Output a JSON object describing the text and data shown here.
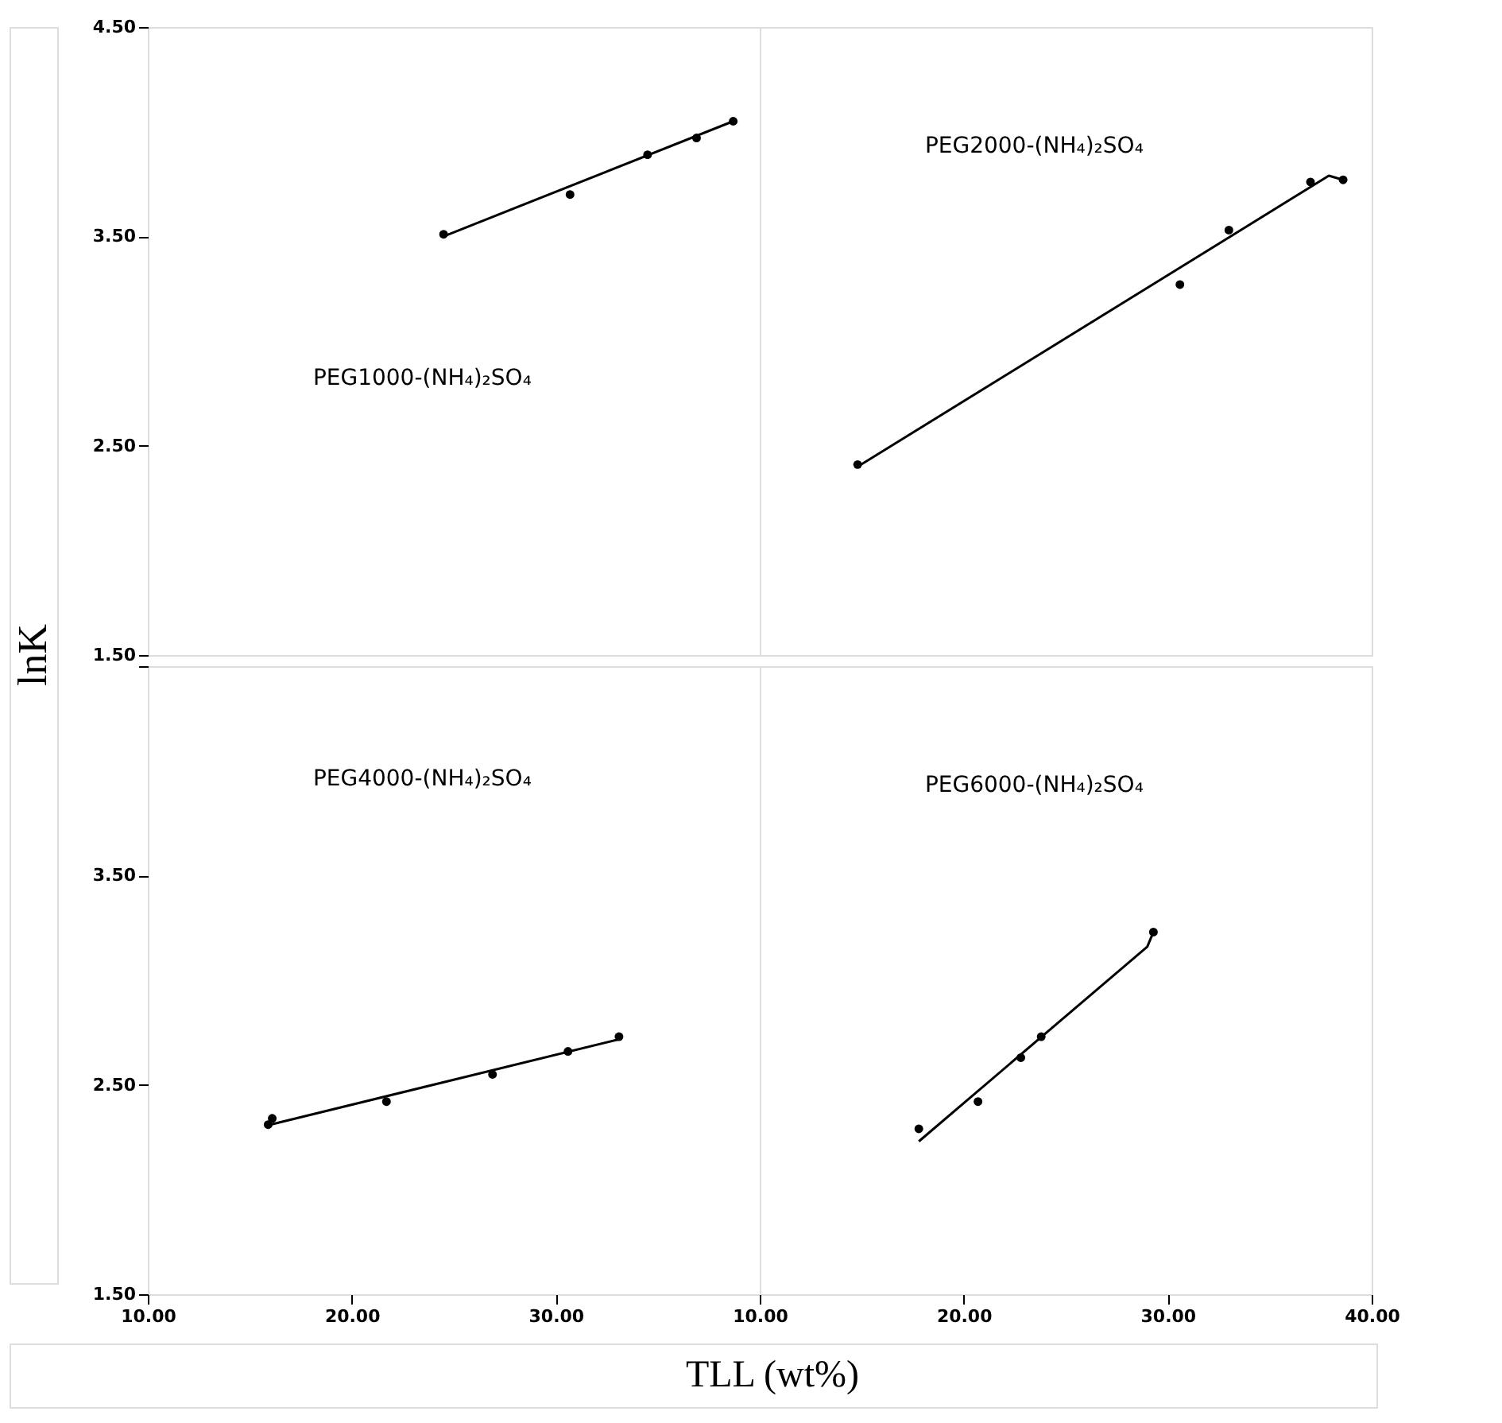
{
  "chart_data": [
    {
      "type": "scatter",
      "title": "PEG1000-(NH₄)₂SO₄",
      "ylabel": "lnK",
      "xlim": [
        10,
        40
      ],
      "ylim": [
        1.5,
        4.5
      ],
      "tick_labels": "y",
      "grid": false,
      "xticks": [
        {
          "value": 10,
          "label": null
        },
        {
          "value": 20,
          "label": null
        },
        {
          "value": 30,
          "label": null
        },
        {
          "value": 40,
          "label": null
        }
      ],
      "yticks": [
        {
          "value": 1.5,
          "label": "1.50"
        },
        {
          "value": 2.5,
          "label": "2.50"
        },
        {
          "value": 3.5,
          "label": "3.50"
        },
        {
          "value": 4.5,
          "label": "4.50"
        }
      ],
      "series": [
        {
          "type": "scatter",
          "marker": "circle",
          "color": "#000000",
          "x": [
            24.5,
            30.7,
            34.5,
            36.9,
            38.7
          ],
          "values": [
            3.51,
            3.7,
            3.89,
            3.97,
            4.05
          ]
        },
        {
          "type": "line",
          "marker": "none",
          "color": "#000000",
          "x": [
            24.5,
            38.7
          ],
          "values": [
            3.5,
            4.05
          ]
        }
      ]
    },
    {
      "type": "scatter",
      "title": "PEG2000-(NH₄)₂SO₄",
      "xlim": [
        10,
        40
      ],
      "ylim": [
        1.5,
        4.5
      ],
      "tick_labels": false,
      "grid": false,
      "xticks": [
        {
          "value": 10,
          "label": null
        },
        {
          "value": 20,
          "label": null
        },
        {
          "value": 30,
          "label": null
        },
        {
          "value": 40,
          "label": null
        }
      ],
      "yticks": [
        {
          "value": 1.5,
          "label": null
        },
        {
          "value": 2.5,
          "label": null
        },
        {
          "value": 3.5,
          "label": null
        },
        {
          "value": 4.5,
          "label": null
        }
      ],
      "series": [
        {
          "type": "scatter",
          "marker": "circle",
          "color": "#000000",
          "x": [
            14.8,
            30.6,
            33.0,
            37.0,
            38.6
          ],
          "values": [
            2.41,
            3.27,
            3.53,
            3.76,
            3.77
          ]
        },
        {
          "type": "line",
          "marker": "none",
          "color": "#000000",
          "x": [
            14.8,
            37.9,
            38.6
          ],
          "values": [
            2.4,
            3.79,
            3.77
          ]
        }
      ]
    },
    {
      "type": "scatter",
      "title": "PEG4000-(NH₄)₂SO₄",
      "xlabel": "TLL (wt%)",
      "xlim": [
        10,
        40
      ],
      "ylim": [
        1.5,
        4.5
      ],
      "grid": false,
      "xticks": [
        {
          "value": 10,
          "label": "10.00"
        },
        {
          "value": 20,
          "label": "20.00"
        },
        {
          "value": 30,
          "label": "30.00"
        },
        {
          "value": 40,
          "label": null
        }
      ],
      "yticks": [
        {
          "value": 1.5,
          "label": "1.50"
        },
        {
          "value": 2.5,
          "label": "2.50"
        },
        {
          "value": 3.5,
          "label": "3.50"
        },
        {
          "value": 4.5,
          "label": null
        }
      ],
      "series": [
        {
          "type": "scatter",
          "marker": "circle",
          "color": "#000000",
          "x": [
            15.9,
            16.1,
            21.7,
            26.9,
            30.6,
            33.1
          ],
          "values": [
            2.31,
            2.34,
            2.42,
            2.55,
            2.66,
            2.73
          ]
        },
        {
          "type": "line",
          "marker": "none",
          "color": "#000000",
          "x": [
            16.0,
            33.2
          ],
          "values": [
            2.31,
            2.72
          ]
        }
      ]
    },
    {
      "type": "scatter",
      "title": "PEG6000-(NH₄)₂SO₄",
      "xlim": [
        10,
        40
      ],
      "ylim": [
        1.5,
        4.5
      ],
      "tick_labels": "x",
      "grid": false,
      "xticks": [
        {
          "value": 10,
          "label": "10.00"
        },
        {
          "value": 20,
          "label": "20.00"
        },
        {
          "value": 30,
          "label": "30.00"
        },
        {
          "value": 40,
          "label": "40.00"
        }
      ],
      "yticks": [
        {
          "value": 1.5,
          "label": null
        },
        {
          "value": 2.5,
          "label": null
        },
        {
          "value": 3.5,
          "label": null
        },
        {
          "value": 4.5,
          "label": null
        }
      ],
      "series": [
        {
          "type": "scatter",
          "marker": "circle",
          "color": "#000000",
          "x": [
            17.8,
            20.7,
            22.8,
            23.8,
            29.3
          ],
          "values": [
            2.29,
            2.42,
            2.63,
            2.73,
            3.23
          ]
        },
        {
          "type": "line",
          "marker": "none",
          "color": "#000000",
          "x": [
            17.8,
            29.0,
            29.3
          ],
          "values": [
            2.23,
            3.16,
            3.23
          ]
        }
      ]
    }
  ]
}
